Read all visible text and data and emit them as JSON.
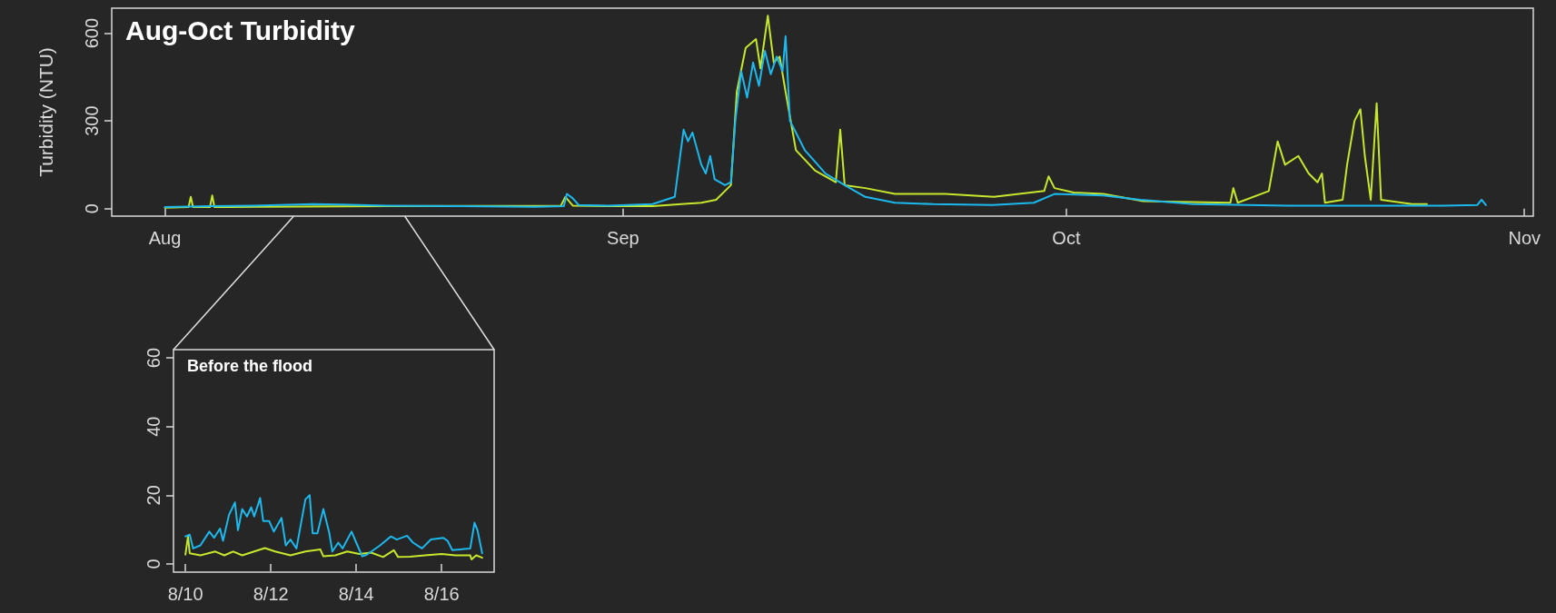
{
  "chart_data": [
    {
      "type": "line",
      "title": "Aug-Oct Turbidity",
      "ylabel": "Turbidity (NTU)",
      "xlim": [
        "--07-28T09:36",
        "--11-01T14:24"
      ],
      "xticks": [
        {
          "value": "--08-01",
          "label": "Aug"
        },
        {
          "value": "--09-01",
          "label": "Sep"
        },
        {
          "value": "--10-01",
          "label": "Oct"
        },
        {
          "value": "--11-01",
          "label": "Nov"
        }
      ],
      "ylim": [
        -26,
        686
      ],
      "yticks": [
        0,
        300,
        600
      ],
      "grid": false,
      "marker": "none",
      "line_style": "solid",
      "series": [
        {
          "color": "#c5e82c",
          "x": [
            "--08-01T00:00",
            "--08-02T14:24",
            "--08-02T18:00",
            "--08-02T21:36",
            "--08-04T01:12",
            "--08-04T04:48",
            "--08-04T08:24",
            "--08-07T00:00",
            "--08-16T00:00",
            "--08-27T19:12",
            "--08-28T02:24",
            "--08-28T14:24",
            "--08-31T00:00",
            "--09-03T00:00",
            "--09-06T07:12",
            "--09-07T07:12",
            "--09-08T07:12",
            "--09-08T16:48",
            "--09-09T07:12",
            "--09-10T00:00",
            "--09-10T07:12",
            "--09-10T19:12",
            "--09-11T04:48",
            "--09-11T14:24",
            "--09-12T00:00",
            "--09-12T16:48",
            "--09-14T00:00",
            "--09-15T09:36",
            "--09-15T16:48",
            "--09-16T00:00",
            "--09-17T09:36",
            "--09-19T09:36",
            "--09-22T19:12",
            "--09-26T02:24",
            "--09-29T12:00",
            "--09-29T19:12",
            "--09-30T04:48",
            "--10-01T12:00",
            "--10-03T12:00",
            "--10-06T04:48",
            "--10-12T02:24",
            "--10-12T07:12",
            "--10-12T14:24",
            "--10-14T16:48",
            "--10-15T07:12",
            "--10-15T19:12",
            "--10-16T16:48",
            "--10-17T09:36",
            "--10-18T00:00",
            "--10-18T07:12",
            "--10-18T12:00",
            "--10-19T16:48",
            "--10-20T00:00",
            "--10-20T12:00",
            "--10-20T21:36",
            "--10-21T04:48",
            "--10-21T14:24",
            "--10-22T00:00",
            "--10-22T07:12",
            "--10-24T09:36",
            "--10-25T09:36"
          ],
          "values": [
            3,
            5,
            40,
            5,
            5,
            45,
            5,
            6,
            8,
            10,
            40,
            10,
            8,
            8,
            20,
            30,
            80,
            400,
            550,
            580,
            480,
            660,
            500,
            520,
            400,
            200,
            130,
            90,
            270,
            80,
            70,
            50,
            50,
            40,
            60,
            110,
            70,
            55,
            50,
            25,
            20,
            70,
            20,
            60,
            230,
            150,
            180,
            120,
            90,
            120,
            20,
            30,
            150,
            300,
            340,
            180,
            30,
            360,
            30,
            15,
            15
          ]
        },
        {
          "color": "#1cb9ee",
          "x": [
            "--08-01T00:00",
            "--08-04T00:00",
            "--08-07T00:00",
            "--08-11T00:00",
            "--08-13T00:00",
            "--08-16T00:00",
            "--08-21T00:00",
            "--08-26T00:00",
            "--08-28T00:00",
            "--08-28T04:48",
            "--08-28T14:24",
            "--08-29T00:00",
            "--08-31T00:00",
            "--09-03T00:00",
            "--09-04T12:00",
            "--09-05T02:24",
            "--09-05T09:36",
            "--09-05T16:48",
            "--09-06T07:12",
            "--09-06T14:24",
            "--09-06T21:36",
            "--09-07T04:48",
            "--09-07T21:36",
            "--09-08T07:12",
            "--09-08T14:24",
            "--09-09T00:00",
            "--09-09T09:36",
            "--09-09T19:12",
            "--09-10T04:48",
            "--09-10T14:24",
            "--09-11T00:00",
            "--09-11T09:36",
            "--09-11T19:12",
            "--09-12T00:00",
            "--09-12T07:12",
            "--09-12T16:48",
            "--09-13T07:12",
            "--09-14T00:00",
            "--09-14T16:48",
            "--09-16T00:00",
            "--09-17T09:36",
            "--09-19T09:36",
            "--09-22T00:00",
            "--09-26T00:00",
            "--09-28T19:12",
            "--09-30T04:48",
            "--10-03T12:00",
            "--10-06T00:00",
            "--10-09T14:24",
            "--10-16T00:00",
            "--10-20T00:00",
            "--10-26T12:00",
            "--10-28T19:12",
            "--10-29T02:24",
            "--10-29T09:36"
          ],
          "values": [
            5,
            8,
            10,
            15,
            14,
            10,
            8,
            6,
            8,
            50,
            35,
            12,
            10,
            15,
            40,
            270,
            230,
            260,
            150,
            120,
            180,
            100,
            80,
            90,
            300,
            470,
            380,
            500,
            420,
            540,
            460,
            520,
            470,
            590,
            300,
            260,
            200,
            160,
            120,
            80,
            40,
            20,
            15,
            12,
            20,
            50,
            45,
            30,
            15,
            10,
            10,
            10,
            12,
            30,
            12
          ]
        }
      ]
    },
    {
      "type": "line",
      "title": "Before the flood",
      "xlim": [
        "--08-09T17:17",
        "--08-17T05:31"
      ],
      "xticks": [
        {
          "value": "--08-10",
          "label": "8/10"
        },
        {
          "value": "--08-12",
          "label": "8/12"
        },
        {
          "value": "--08-14",
          "label": "8/14"
        },
        {
          "value": "--08-16",
          "label": "8/16"
        }
      ],
      "ylim": [
        -2.4,
        62.4
      ],
      "yticks": [
        0,
        20,
        40,
        60
      ],
      "grid": false,
      "marker": "none",
      "line_style": "solid",
      "series": [
        {
          "color": "#c5e82c",
          "x": [
            "--08-10T00:00",
            "--08-10T01:26",
            "--08-10T02:24",
            "--08-10T08:24",
            "--08-10T16:48",
            "--08-10T21:50",
            "--08-11T02:53",
            "--08-11T07:55",
            "--08-11T14:38",
            "--08-11T20:38",
            "--08-12T02:24",
            "--08-12T11:02",
            "--08-12T19:26",
            "--08-13T03:50",
            "--08-13T05:31",
            "--08-13T12:14",
            "--08-13T18:58",
            "--08-14T01:41",
            "--08-14T08:24",
            "--08-14T15:07",
            "--08-14T21:07",
            "--08-14T23:31",
            "--08-15T06:14",
            "--08-15T14:38",
            "--08-16T00:00",
            "--08-16T07:41",
            "--08-16T16:05",
            "--08-16T16:48",
            "--08-16T19:26",
            "--08-16T22:48"
          ],
          "values": [
            2.7,
            8,
            3.1,
            2.5,
            3.6,
            2.5,
            3.6,
            2.5,
            3.6,
            4.6,
            3.6,
            2.5,
            3.6,
            4.2,
            2.2,
            2.5,
            3.6,
            2.9,
            3.3,
            2,
            4,
            2,
            2.1,
            2.5,
            2.9,
            2.5,
            2.5,
            1.3,
            2.5,
            1.8
          ]
        },
        {
          "color": "#1cb9ee",
          "x": [
            "--08-10T00:00",
            "--08-10T02:24",
            "--08-10T04:19",
            "--08-10T08:24",
            "--08-10T13:26",
            "--08-10T16:05",
            "--08-10T19:26",
            "--08-10T21:07",
            "--08-11T00:29",
            "--08-11T03:50",
            "--08-11T05:31",
            "--08-11T07:55",
            "--08-11T10:34",
            "--08-11T12:58",
            "--08-11T14:38",
            "--08-11T18:00",
            "--08-11T19:41",
            "--08-11T23:02",
            "--08-12T01:41",
            "--08-12T06:00",
            "--08-12T08:24",
            "--08-12T11:02",
            "--08-12T14:24",
            "--08-12T19:26",
            "--08-12T21:50",
            "--08-12T23:31",
            "--08-13T02:10",
            "--08-13T05:31",
            "--08-13T08:53",
            "--08-13T10:34",
            "--08-13T13:55",
            "--08-13T16:19",
            "--08-13T21:22",
            "--08-14T00:00",
            "--08-14T03:22",
            "--08-14T06:00",
            "--08-14T13:26",
            "--08-14T19:26",
            "--08-14T22:48",
            "--08-15T04:34",
            "--08-15T07:55",
            "--08-15T12:58",
            "--08-15T18:00",
            "--08-16T00:58",
            "--08-16T03:22",
            "--08-16T06:00",
            "--08-16T16:05",
            "--08-16T18:29",
            "--08-16T20:10",
            "--08-16T22:48"
          ],
          "values": [
            8,
            8.5,
            4.5,
            5.4,
            9.4,
            7.6,
            10.3,
            6.7,
            14.3,
            17.9,
            9.8,
            16,
            13.8,
            16.5,
            13.8,
            19.2,
            12.5,
            12.5,
            9.4,
            13.4,
            5.4,
            7.1,
            4.5,
            18.8,
            20,
            8.9,
            8.9,
            16,
            8.9,
            3.6,
            6.2,
            4.5,
            9.4,
            6.2,
            2.2,
            2.7,
            5.4,
            8,
            7.1,
            8.2,
            6.2,
            4.5,
            7.1,
            7.6,
            6.7,
            4,
            4.5,
            12,
            9.8,
            3.1
          ]
        }
      ]
    }
  ]
}
